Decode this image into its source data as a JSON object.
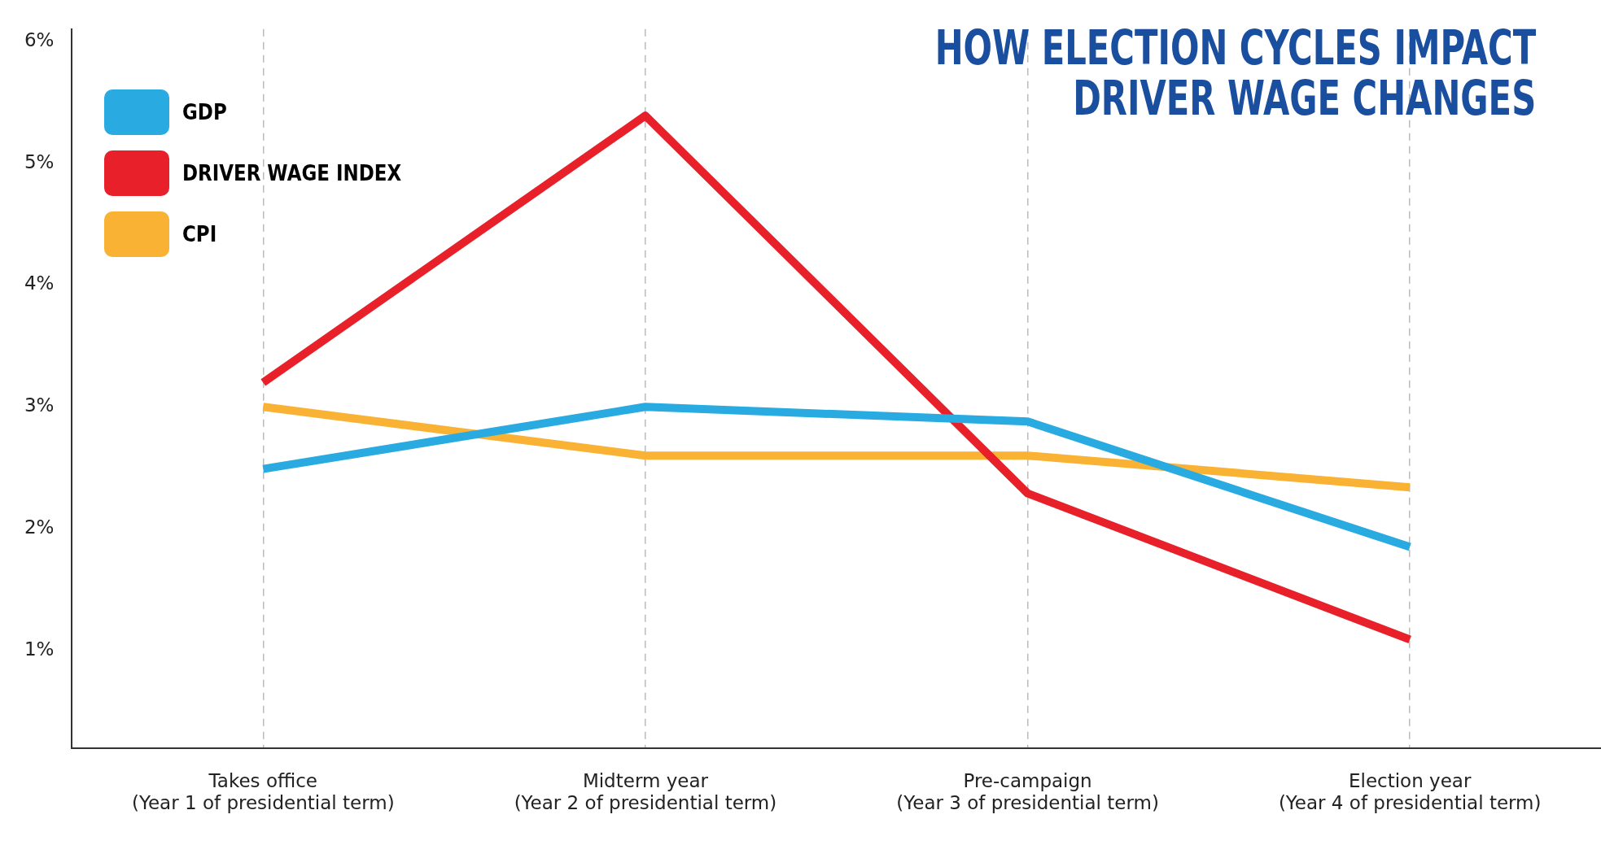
{
  "chart_data": {
    "type": "line",
    "title": "HOW ELECTION CYCLES IMPACT\nDRIVER WAGE CHANGES",
    "categories": [
      "Takes office\n(Year 1 of presidential term)",
      "Midterm year\n(Year 2 of presidential term)",
      "Pre-campaign\n(Year 3 of presidential term)",
      "Election year\n(Year 4 of presidential term)"
    ],
    "series": [
      {
        "name": "GDP",
        "color": "#29abe2",
        "values": [
          2.49,
          3.0,
          2.88,
          1.85
        ]
      },
      {
        "name": "DRIVER WAGE INDEX",
        "color": "#e8202a",
        "values": [
          3.2,
          5.39,
          2.29,
          1.09
        ]
      },
      {
        "name": "CPI",
        "color": "#f9b233",
        "values": [
          3.0,
          2.6,
          2.6,
          2.34
        ]
      }
    ],
    "ylim": [
      0.2,
      6.1
    ],
    "yticks": [
      {
        "value": 1,
        "label": "1%"
      },
      {
        "value": 2,
        "label": "2%"
      },
      {
        "value": 3,
        "label": "3%"
      },
      {
        "value": 4,
        "label": "4%"
      },
      {
        "value": 5,
        "label": "5%"
      },
      {
        "value": 6,
        "label": "6%"
      }
    ],
    "grid": "x",
    "legend": "top left",
    "marker": "none",
    "line_style": "solid"
  }
}
